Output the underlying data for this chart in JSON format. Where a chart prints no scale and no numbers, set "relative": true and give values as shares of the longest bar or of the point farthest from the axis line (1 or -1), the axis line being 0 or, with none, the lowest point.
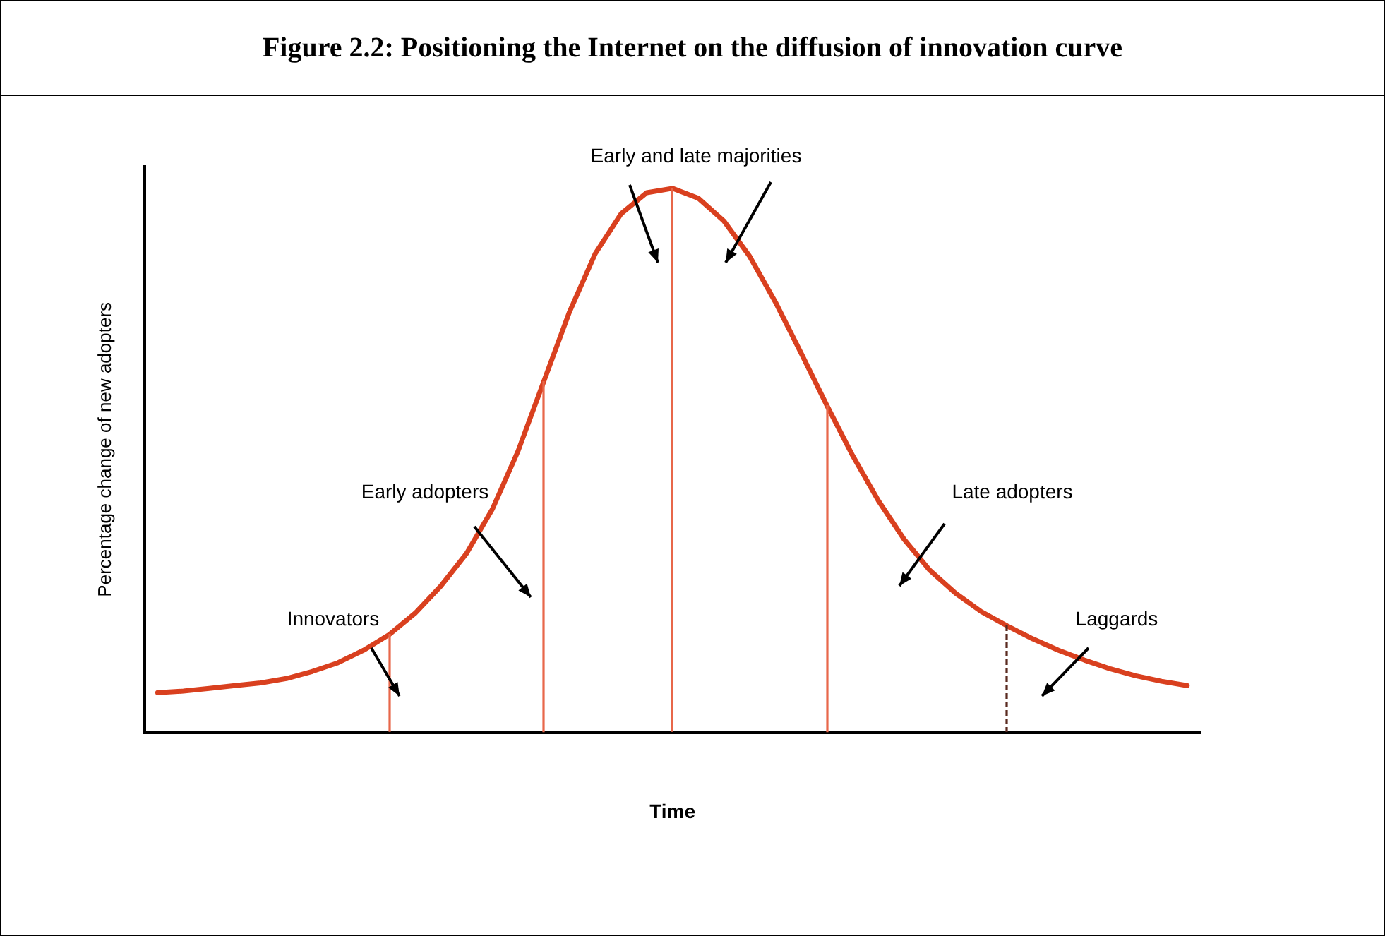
{
  "chart_data": {
    "type": "line",
    "title": "Figure 2.2:  Positioning the Internet on the diffusion of innovation curve",
    "xlabel": "Time",
    "ylabel": "Percentage change of new adopters",
    "relative": true,
    "legend": false,
    "grid": false,
    "marker": "none",
    "line_style": "solid",
    "categories": [
      null,
      null,
      null,
      null,
      null,
      null,
      null,
      null,
      null,
      null,
      null,
      null,
      null,
      null,
      null,
      null,
      null,
      null,
      null,
      null,
      null,
      null,
      null,
      null,
      null,
      null,
      null,
      null,
      null,
      null,
      null,
      null,
      null,
      null,
      null,
      null,
      null,
      null,
      null,
      null,
      null
    ],
    "series": [
      {
        "color": "#d9401f",
        "values": [
          0.073,
          0.076,
          0.081,
          0.086,
          0.091,
          0.099,
          0.112,
          0.128,
          0.151,
          0.18,
          0.219,
          0.269,
          0.329,
          0.41,
          0.517,
          0.645,
          0.773,
          0.88,
          0.953,
          0.992,
          1.0,
          0.982,
          0.94,
          0.875,
          0.791,
          0.697,
          0.601,
          0.509,
          0.426,
          0.355,
          0.298,
          0.256,
          0.222,
          0.196,
          0.172,
          0.151,
          0.133,
          0.117,
          0.104,
          0.094,
          0.086
        ]
      }
    ],
    "annotations": [
      "Innovators",
      "Early adopters",
      "Early and late majorities",
      "Late adopters",
      "Laggards"
    ]
  }
}
